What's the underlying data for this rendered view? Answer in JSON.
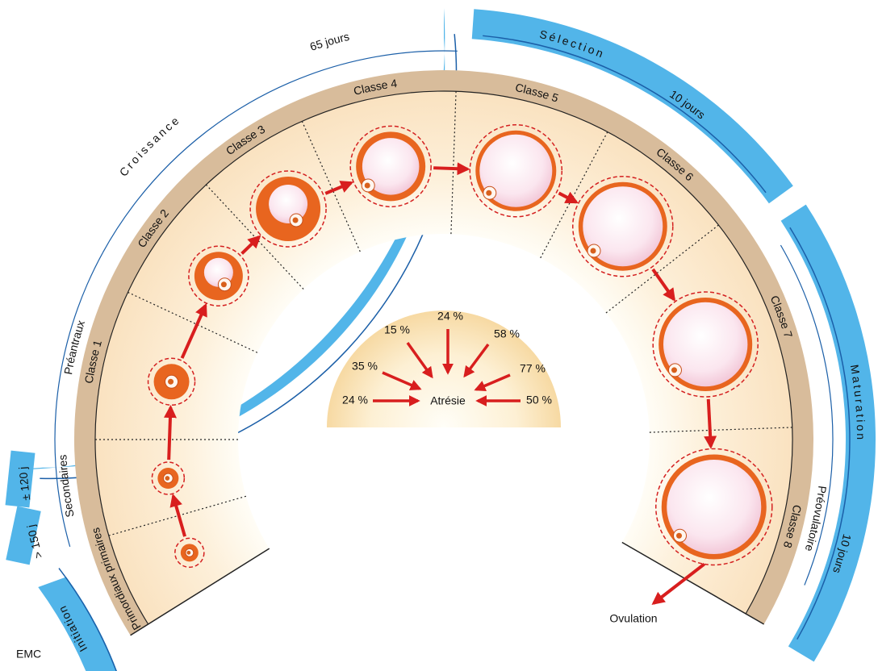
{
  "phases": [
    "Initiation",
    "Croissance",
    "Sélection",
    "Maturation"
  ],
  "durations": [
    "± 120 j",
    "> 150 j",
    "65 jours",
    "10 jours",
    "10 jours"
  ],
  "stages": [
    "Primordiaux primaires",
    "Secondaires",
    "Préantraux",
    "Préovulatoire"
  ],
  "classes": [
    "Classe 1",
    "Classe 2",
    "Classe 3",
    "Classe 4",
    "Classe 5",
    "Classe 6",
    "Classe 7",
    "Classe 8"
  ],
  "atresia": {
    "label": "Atrésie",
    "rates": [
      "24 %",
      "35 %",
      "15 %",
      "24 %",
      "58 %",
      "77 %",
      "50 %"
    ]
  },
  "ovulation": "Ovulation",
  "credit": "EMC"
}
